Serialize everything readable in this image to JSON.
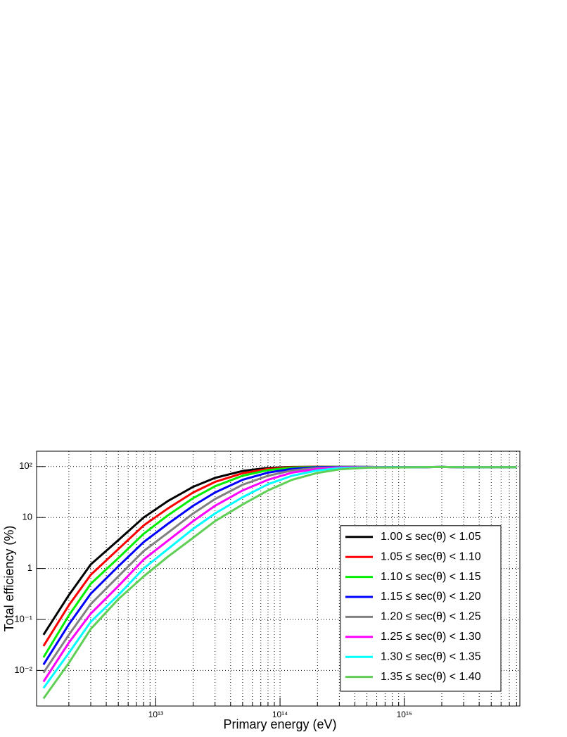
{
  "chart_data": {
    "type": "line",
    "x_label": "Primary energy (eV)",
    "y_label": "Total efficiency (%)",
    "xscale": "log",
    "yscale": "log",
    "grid": true,
    "legend_position": "lower right",
    "xlim": [
      1100000000000.0,
      8500000000000000.0
    ],
    "ylim": [
      0.002,
      200
    ],
    "xticks": [
      {
        "value": 10000000000000.0,
        "label": "10¹³"
      },
      {
        "value": 100000000000000.0,
        "label": "10¹⁴"
      },
      {
        "value": 1000000000000000.0,
        "label": "10¹⁵"
      }
    ],
    "xminorticks": [
      2000000000000.0,
      3000000000000.0,
      4000000000000.0,
      5000000000000.0,
      6000000000000.0,
      7000000000000.0,
      8000000000000.0,
      9000000000000.0,
      20000000000000.0,
      30000000000000.0,
      40000000000000.0,
      50000000000000.0,
      60000000000000.0,
      70000000000000.0,
      80000000000000.0,
      90000000000000.0,
      200000000000000.0,
      300000000000000.0,
      400000000000000.0,
      500000000000000.0,
      600000000000000.0,
      700000000000000.0,
      800000000000000.0,
      900000000000000.0,
      2000000000000000.0,
      3000000000000000.0,
      4000000000000000.0,
      5000000000000000.0,
      6000000000000000.0,
      7000000000000000.0,
      8000000000000000.0
    ],
    "yticks": [
      {
        "value": 100,
        "label": "10²"
      },
      10,
      1,
      {
        "value": 0.1,
        "label": "10⁻¹"
      },
      {
        "value": 0.01,
        "label": "10⁻²"
      }
    ],
    "x": [
      1250000000000.0,
      2000000000000.0,
      3000000000000.0,
      5000000000000.0,
      8000000000000.0,
      12500000000000.0,
      20000000000000.0,
      30000000000000.0,
      50000000000000.0,
      80000000000000.0,
      125000000000000.0,
      200000000000000.0,
      300000000000000.0,
      500000000000000.0,
      800000000000000.0,
      1250000000000000.0,
      2000000000000000.0,
      3000000000000000.0,
      5000000000000000.0,
      8000000000000000.0
    ],
    "series": [
      {
        "name": "1.00 ≤ sec(θ) < 1.05",
        "color": "#000000",
        "values": [
          0.05,
          0.3,
          1.2,
          3.6,
          10,
          21,
          40,
          60,
          82,
          94,
          98,
          99,
          99,
          98,
          97,
          97,
          98,
          97,
          97,
          97
        ]
      },
      {
        "name": "1.05 ≤ sec(θ) < 1.10",
        "color": "#ff0000",
        "values": [
          0.03,
          0.19,
          0.75,
          2.4,
          7,
          15,
          31,
          50,
          74,
          90,
          97,
          99,
          99,
          98,
          97,
          97,
          98,
          97,
          97,
          97
        ]
      },
      {
        "name": "1.10 ≤ sec(θ) < 1.15",
        "color": "#00ee00",
        "values": [
          0.018,
          0.12,
          0.5,
          1.6,
          4.8,
          11,
          24,
          41,
          66,
          85,
          95,
          98,
          99,
          98,
          97,
          97,
          98,
          97,
          97,
          97
        ]
      },
      {
        "name": "1.15 ≤ sec(θ) < 1.20",
        "color": "#0000ff",
        "values": [
          0.013,
          0.08,
          0.32,
          1.1,
          3.3,
          7.5,
          17,
          31,
          55,
          76,
          90,
          97,
          98,
          98,
          97,
          97,
          98,
          97,
          97,
          97
        ]
      },
      {
        "name": "1.20 ≤ sec(θ) < 1.25",
        "color": "#808080",
        "values": [
          0.009,
          0.05,
          0.2,
          0.7,
          2.2,
          5,
          12,
          23,
          44,
          66,
          84,
          94,
          97,
          98,
          97,
          97,
          98,
          97,
          97,
          97
        ]
      },
      {
        "name": "1.25 ≤ sec(θ) < 1.30",
        "color": "#ff00ff",
        "values": [
          0.006,
          0.035,
          0.13,
          0.45,
          1.5,
          3.5,
          8.5,
          17,
          34,
          55,
          76,
          90,
          96,
          97,
          97,
          97,
          98,
          97,
          97,
          97
        ]
      },
      {
        "name": "1.30 ≤ sec(θ) < 1.35",
        "color": "#00ffff",
        "values": [
          0.0045,
          0.022,
          0.09,
          0.3,
          1,
          2.4,
          6,
          12,
          25,
          45,
          66,
          84,
          93,
          96,
          97,
          97,
          98,
          97,
          97,
          97
        ]
      },
      {
        "name": "1.35 ≤ sec(θ) < 1.40",
        "color": "#5fcf55",
        "values": [
          0.0028,
          0.014,
          0.065,
          0.25,
          0.7,
          1.7,
          4,
          8.5,
          18,
          34,
          55,
          75,
          88,
          95,
          96,
          97,
          98,
          97,
          97,
          97
        ]
      }
    ]
  }
}
